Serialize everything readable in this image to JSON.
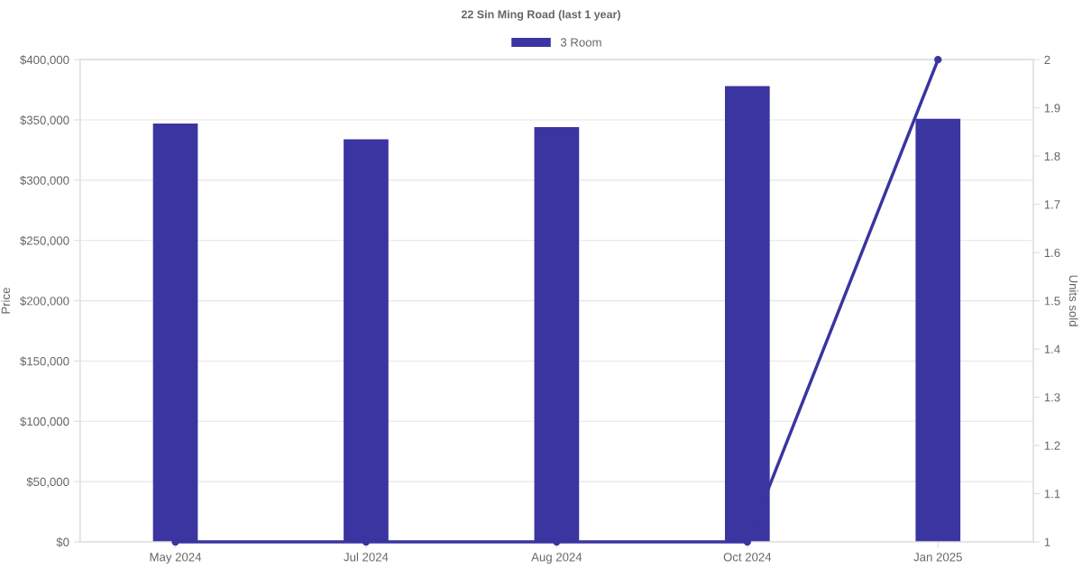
{
  "chart_data": {
    "type": "bar",
    "title": "22 Sin Ming Road (last 1 year)",
    "ylabel": "Price",
    "y2label": "Units sold",
    "categories": [
      "May 2024",
      "Jul 2024",
      "Aug 2024",
      "Oct 2024",
      "Jan 2025"
    ],
    "series": [
      {
        "name": "3 Room",
        "color": "#3a35a0",
        "values": [
          347000,
          334000,
          344000,
          378000,
          351000
        ]
      },
      {
        "type": "line",
        "axis": "y2",
        "color": "#3a35a0",
        "marker": "circle",
        "values": [
          1,
          1,
          1,
          1,
          2
        ]
      }
    ],
    "ylim": [
      0,
      400000
    ],
    "yticks": [
      {
        "value": 0,
        "label": "$0"
      },
      {
        "value": 50000,
        "label": "$50,000"
      },
      {
        "value": 100000,
        "label": "$100,000"
      },
      {
        "value": 150000,
        "label": "$150,000"
      },
      {
        "value": 200000,
        "label": "$200,000"
      },
      {
        "value": 250000,
        "label": "$250,000"
      },
      {
        "value": 300000,
        "label": "$300,000"
      },
      {
        "value": 350000,
        "label": "$350,000"
      },
      {
        "value": 400000,
        "label": "$400,000"
      }
    ],
    "y2lim": [
      1,
      2
    ],
    "y2ticks": [
      1,
      1.1,
      1.2,
      1.3,
      1.4,
      1.5,
      1.6,
      1.7,
      1.8,
      1.9,
      2
    ],
    "grid": "y",
    "legend": "top"
  }
}
